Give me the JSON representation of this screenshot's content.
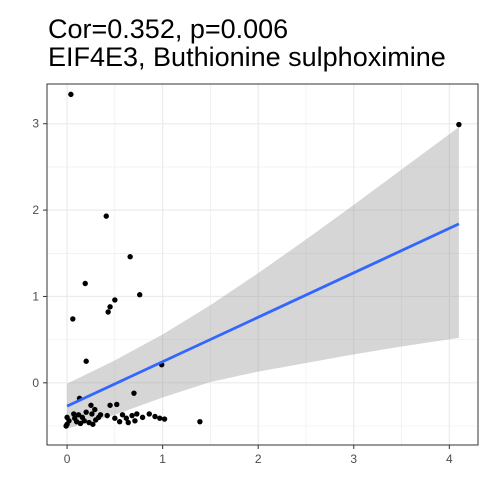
{
  "chart_data": {
    "type": "scatter",
    "title": "Cor=0.352, p=0.006",
    "subtitle": "EIF4E3, Buthionine sulphoximine",
    "xlabel": "",
    "ylabel": "",
    "xlim": [
      -0.21,
      4.3
    ],
    "ylim": [
      -0.72,
      3.46
    ],
    "x_ticks": [
      0,
      1,
      2,
      3,
      4
    ],
    "y_ticks": [
      0,
      1,
      2,
      3
    ],
    "grid": true,
    "points": [
      {
        "x": 0.04,
        "y": 3.34
      },
      {
        "x": 4.1,
        "y": 2.99
      },
      {
        "x": 0.41,
        "y": 1.93
      },
      {
        "x": 0.66,
        "y": 1.46
      },
      {
        "x": 0.19,
        "y": 1.15
      },
      {
        "x": 0.76,
        "y": 1.02
      },
      {
        "x": 0.5,
        "y": 0.96
      },
      {
        "x": 0.45,
        "y": 0.88
      },
      {
        "x": 0.43,
        "y": 0.82
      },
      {
        "x": 0.06,
        "y": 0.74
      },
      {
        "x": 0.2,
        "y": 0.25
      },
      {
        "x": 0.99,
        "y": 0.21
      },
      {
        "x": 0.13,
        "y": -0.18
      },
      {
        "x": 0.7,
        "y": -0.12
      },
      {
        "x": 0.25,
        "y": -0.26
      },
      {
        "x": 0.29,
        "y": -0.31
      },
      {
        "x": 0.45,
        "y": -0.26
      },
      {
        "x": 0.52,
        "y": -0.25
      },
      {
        "x": 0.2,
        "y": -0.34
      },
      {
        "x": 0.07,
        "y": -0.36
      },
      {
        "x": 0.12,
        "y": -0.37
      },
      {
        "x": 0.26,
        "y": -0.36
      },
      {
        "x": 0.35,
        "y": -0.37
      },
      {
        "x": 0.42,
        "y": -0.38
      },
      {
        "x": 0.58,
        "y": -0.37
      },
      {
        "x": 0.68,
        "y": -0.38
      },
      {
        "x": 0.73,
        "y": -0.36
      },
      {
        "x": 0.86,
        "y": -0.36
      },
      {
        "x": 0.92,
        "y": -0.39
      },
      {
        "x": 0.0,
        "y": -0.4
      },
      {
        "x": 0.08,
        "y": -0.41
      },
      {
        "x": 0.16,
        "y": -0.4
      },
      {
        "x": 0.33,
        "y": -0.4
      },
      {
        "x": 0.5,
        "y": -0.41
      },
      {
        "x": 0.62,
        "y": -0.41
      },
      {
        "x": 0.79,
        "y": -0.4
      },
      {
        "x": 0.97,
        "y": -0.41
      },
      {
        "x": 1.02,
        "y": -0.42
      },
      {
        "x": 0.02,
        "y": -0.44
      },
      {
        "x": 0.1,
        "y": -0.45
      },
      {
        "x": 0.18,
        "y": -0.44
      },
      {
        "x": 0.23,
        "y": -0.46
      },
      {
        "x": 0.3,
        "y": -0.43
      },
      {
        "x": 0.55,
        "y": -0.45
      },
      {
        "x": 0.64,
        "y": -0.46
      },
      {
        "x": 0.71,
        "y": -0.44
      },
      {
        "x": 0.14,
        "y": -0.47
      },
      {
        "x": 0.27,
        "y": -0.48
      },
      {
        "x": 0.0,
        "y": -0.48
      },
      {
        "x": 1.39,
        "y": -0.45
      },
      {
        "x": -0.01,
        "y": -0.5
      }
    ],
    "fit": {
      "method": "linear",
      "color": "#3366ff",
      "band_color": "#999999",
      "line": [
        [
          0.0,
          -0.27
        ],
        [
          4.1,
          1.84
        ]
      ],
      "band_upper": [
        [
          0.0,
          -0.01
        ],
        [
          0.5,
          0.26
        ],
        [
          1.0,
          0.56
        ],
        [
          1.5,
          0.9
        ],
        [
          2.0,
          1.27
        ],
        [
          2.5,
          1.66
        ],
        [
          3.0,
          2.06
        ],
        [
          3.5,
          2.47
        ],
        [
          4.1,
          2.96
        ]
      ],
      "band_lower": [
        [
          0.0,
          -0.53
        ],
        [
          0.5,
          -0.37
        ],
        [
          1.0,
          -0.17
        ],
        [
          1.5,
          0.01
        ],
        [
          2.0,
          0.13
        ],
        [
          2.5,
          0.23
        ],
        [
          3.0,
          0.33
        ],
        [
          3.5,
          0.42
        ],
        [
          4.1,
          0.52
        ]
      ]
    },
    "colors": {
      "points": "#000000",
      "grid": "#ebebeb",
      "panel_border": "#333333",
      "tick_text": "#4d4d4d"
    }
  }
}
